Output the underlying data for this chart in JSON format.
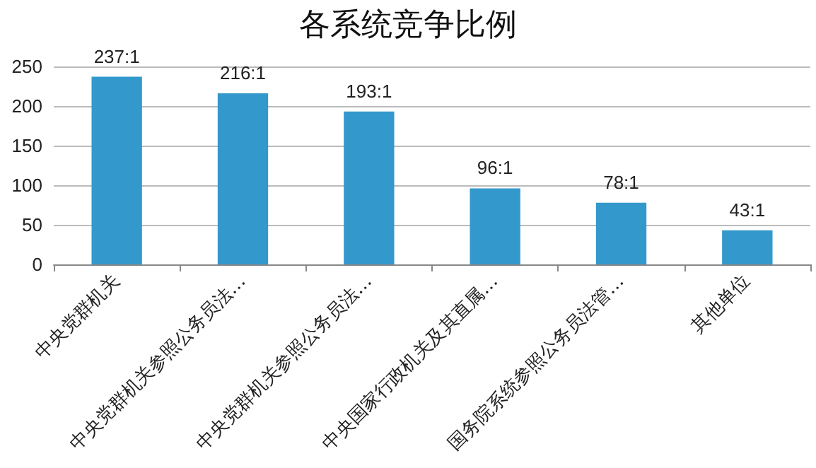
{
  "chart_data": {
    "type": "bar",
    "title": "各系统竞争比例",
    "categories": [
      "中央党群机关",
      "中央党群机关参照公务员法…",
      "中央党群机关参照公务员法…",
      "中央国家行政机关及其直属…",
      "国务院系统参照公务员法管…",
      "其他单位"
    ],
    "values": [
      237,
      216,
      193,
      96,
      78,
      43
    ],
    "value_labels": [
      "237:1",
      "216:1",
      "193:1",
      "96:1",
      "78:1",
      "43:1"
    ],
    "color": "#3399cc",
    "ylim": [
      0,
      250
    ],
    "yticks": [
      0,
      50,
      100,
      150,
      200,
      250
    ],
    "grid": "y"
  }
}
